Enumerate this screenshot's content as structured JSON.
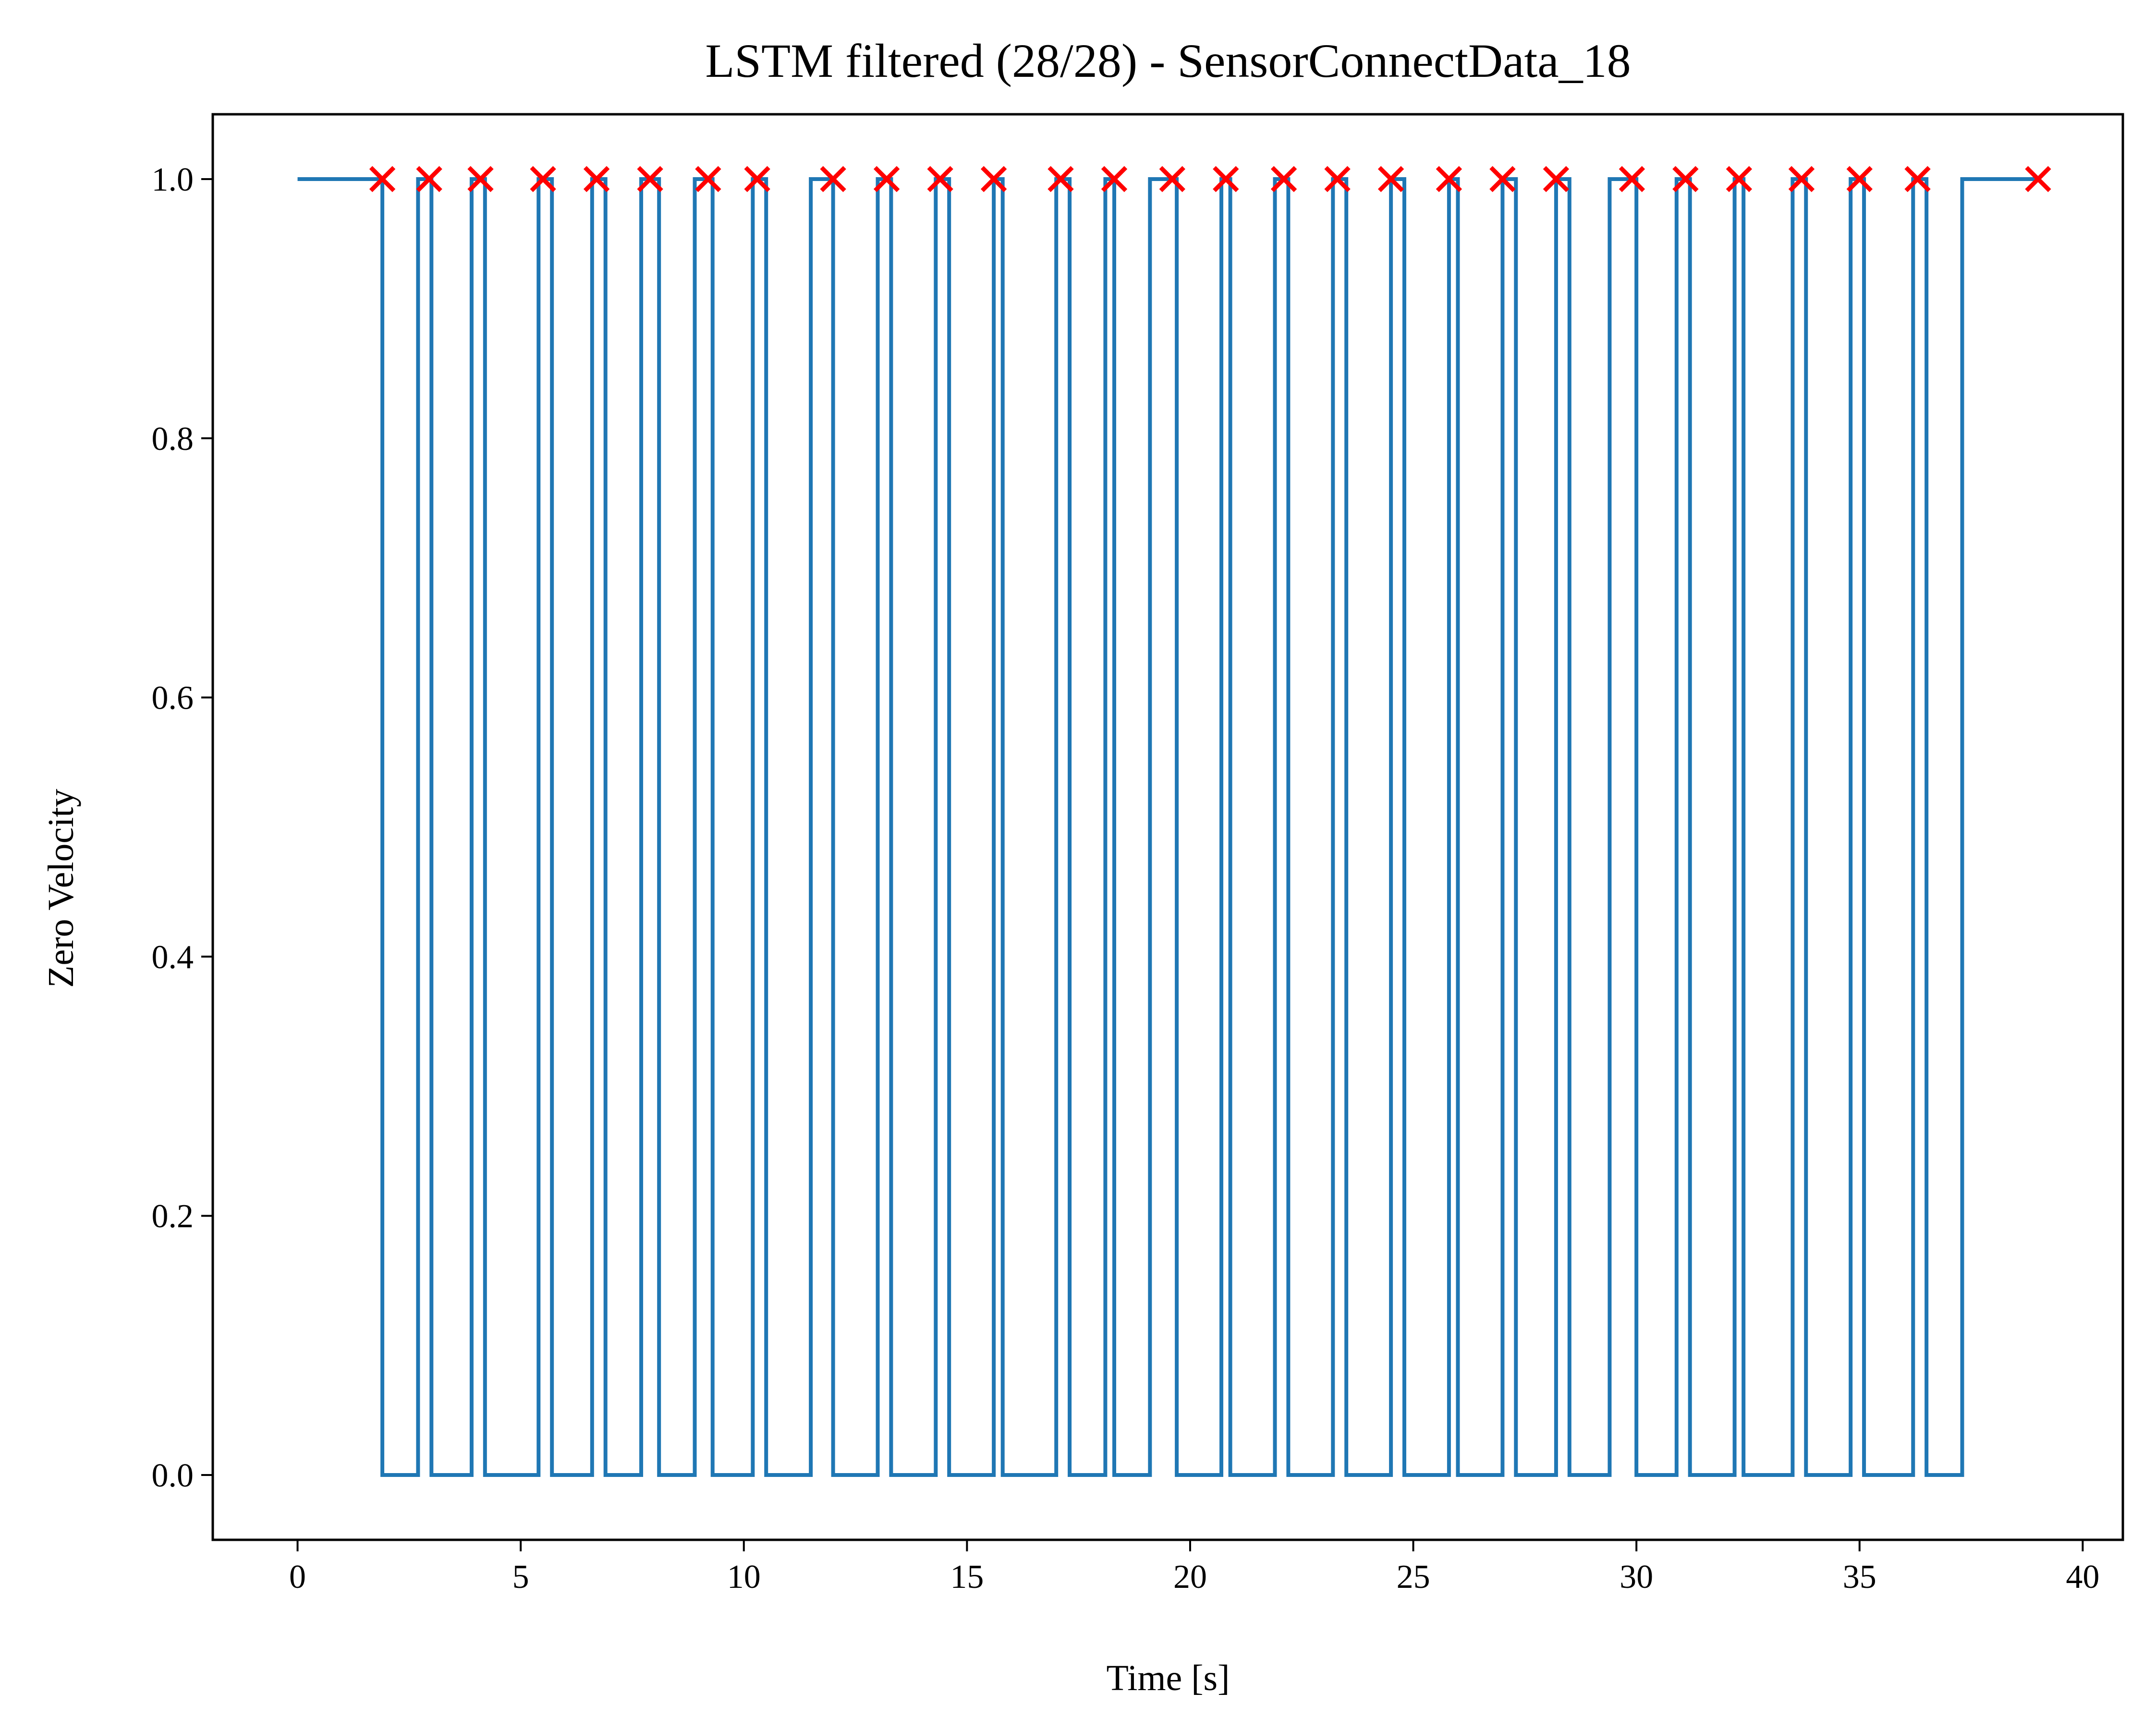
{
  "chart_data": {
    "type": "line",
    "title": "LSTM filtered (28/28) - SensorConnectData_18",
    "xlabel": "Time [s]",
    "ylabel": "Zero Velocity",
    "xlim": [
      -1.9,
      40.9
    ],
    "ylim": [
      -0.05,
      1.05
    ],
    "x_ticks": [
      0,
      5,
      10,
      15,
      20,
      25,
      30,
      35,
      40
    ],
    "x_tick_labels": [
      "0",
      "5",
      "10",
      "15",
      "20",
      "25",
      "30",
      "35",
      "40"
    ],
    "y_ticks": [
      0.0,
      0.2,
      0.4,
      0.6,
      0.8,
      1.0
    ],
    "y_tick_labels": [
      "0.0",
      "0.2",
      "0.4",
      "0.6",
      "0.8",
      "1.0"
    ],
    "grid": false,
    "legend": "none",
    "series": [
      {
        "style": "step",
        "color": "#1f77b4",
        "start_x": 0.0,
        "end_x": 37.3,
        "start_value": 1,
        "end_value": 1,
        "low_intervals": [
          [
            1.9,
            2.7
          ],
          [
            3.0,
            3.9
          ],
          [
            4.2,
            5.4
          ],
          [
            5.7,
            6.6
          ],
          [
            6.9,
            7.7
          ],
          [
            8.1,
            8.9
          ],
          [
            9.3,
            10.2
          ],
          [
            10.5,
            11.5
          ],
          [
            12.0,
            13.0
          ],
          [
            13.3,
            14.3
          ],
          [
            14.6,
            15.6
          ],
          [
            15.8,
            17.0
          ],
          [
            17.3,
            18.1
          ],
          [
            18.3,
            19.1
          ],
          [
            19.7,
            20.7
          ],
          [
            20.9,
            21.9
          ],
          [
            22.2,
            23.2
          ],
          [
            23.5,
            24.5
          ],
          [
            24.8,
            25.8
          ],
          [
            26.0,
            27.0
          ],
          [
            27.3,
            28.2
          ],
          [
            28.5,
            29.4
          ],
          [
            30.0,
            30.9
          ],
          [
            31.2,
            32.2
          ],
          [
            32.4,
            33.5
          ],
          [
            33.8,
            34.8
          ],
          [
            35.1,
            36.2
          ],
          [
            36.5,
            37.3
          ]
        ]
      },
      {
        "style": "scatter",
        "marker": "x",
        "color": "#ff0000",
        "x": [
          1.9,
          2.95,
          4.1,
          5.5,
          6.7,
          7.9,
          9.2,
          10.3,
          12.0,
          13.2,
          14.4,
          15.6,
          17.1,
          18.3,
          19.6,
          20.8,
          22.1,
          23.3,
          24.5,
          25.8,
          27.0,
          28.2,
          29.9,
          31.1,
          32.3,
          33.7,
          35.0,
          36.3,
          39.0
        ],
        "y": [
          1,
          1,
          1,
          1,
          1,
          1,
          1,
          1,
          1,
          1,
          1,
          1,
          1,
          1,
          1,
          1,
          1,
          1,
          1,
          1,
          1,
          1,
          1,
          1,
          1,
          1,
          1,
          1,
          1
        ]
      }
    ]
  }
}
